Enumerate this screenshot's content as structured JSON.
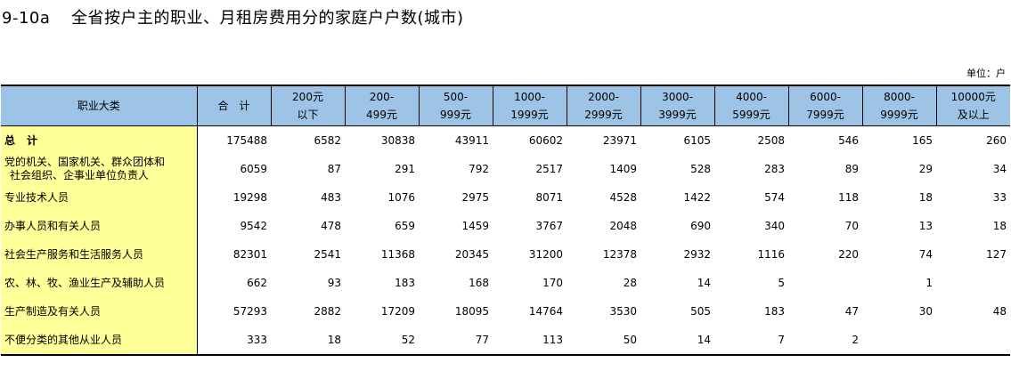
{
  "title": {
    "number": "9-10a",
    "text": "全省按户主的职业、月租房费用分的家庭户户数(城市)"
  },
  "unit": "单位：户",
  "header": {
    "col0": "职业大类",
    "col1": "合　计",
    "cols": [
      [
        "200元",
        "以下"
      ],
      [
        "200-",
        "499元"
      ],
      [
        "500-",
        "999元"
      ],
      [
        "1000-",
        "1999元"
      ],
      [
        "2000-",
        "2999元"
      ],
      [
        "3000-",
        "3999元"
      ],
      [
        "4000-",
        "5999元"
      ],
      [
        "6000-",
        "7999元"
      ],
      [
        "8000-",
        "9999元"
      ],
      [
        "10000元",
        "及以上"
      ]
    ]
  },
  "rows": [
    {
      "label": [
        "总　计"
      ],
      "bold": true,
      "values": [
        "175488",
        "6582",
        "30838",
        "43911",
        "60602",
        "23971",
        "6105",
        "2508",
        "546",
        "165",
        "260"
      ]
    },
    {
      "label": [
        "党的机关、国家机关、群众团体和",
        "社会组织、企事业单位负责人"
      ],
      "bold": false,
      "values": [
        "6059",
        "87",
        "291",
        "792",
        "2517",
        "1409",
        "528",
        "283",
        "89",
        "29",
        "34"
      ]
    },
    {
      "label": [
        "专业技术人员"
      ],
      "bold": false,
      "values": [
        "19298",
        "483",
        "1076",
        "2975",
        "8071",
        "4528",
        "1422",
        "574",
        "118",
        "18",
        "33"
      ]
    },
    {
      "label": [
        "办事人员和有关人员"
      ],
      "bold": false,
      "values": [
        "9542",
        "478",
        "659",
        "1459",
        "3767",
        "2048",
        "690",
        "340",
        "70",
        "13",
        "18"
      ]
    },
    {
      "label": [
        "社会生产服务和生活服务人员"
      ],
      "bold": false,
      "values": [
        "82301",
        "2541",
        "11368",
        "20345",
        "31200",
        "12378",
        "2932",
        "1116",
        "220",
        "74",
        "127"
      ]
    },
    {
      "label": [
        "农、林、牧、渔业生产及辅助人员"
      ],
      "bold": false,
      "values": [
        "662",
        "93",
        "183",
        "168",
        "170",
        "28",
        "14",
        "5",
        "",
        "1",
        ""
      ]
    },
    {
      "label": [
        "生产制造及有关人员"
      ],
      "bold": false,
      "values": [
        "57293",
        "2882",
        "17209",
        "18095",
        "14764",
        "3530",
        "505",
        "183",
        "47",
        "30",
        "48"
      ]
    },
    {
      "label": [
        "不便分类的其他从业人员"
      ],
      "bold": false,
      "values": [
        "333",
        "18",
        "52",
        "77",
        "113",
        "50",
        "14",
        "7",
        "2",
        "",
        ""
      ]
    }
  ]
}
